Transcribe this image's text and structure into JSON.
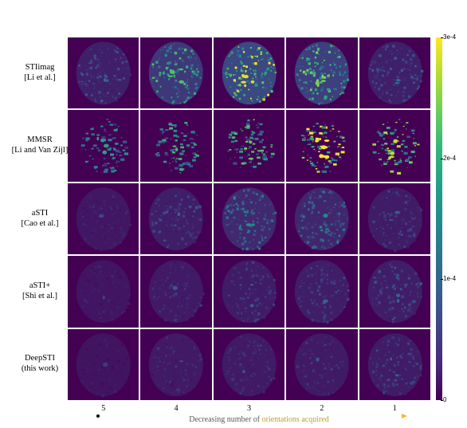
{
  "rows": [
    {
      "name": "STIimag",
      "cite": "[Li et al.]",
      "intensity": [
        0.25,
        0.6,
        0.85,
        0.7,
        0.25
      ]
    },
    {
      "name": "MMSR",
      "cite": "[Li and Van Zijl]",
      "intensity": [
        0.45,
        0.55,
        0.65,
        0.95,
        0.8
      ]
    },
    {
      "name": "aSTI",
      "cite": "[Cao et al.]",
      "intensity": [
        0.12,
        0.22,
        0.38,
        0.35,
        0.2
      ]
    },
    {
      "name": "aSTI+",
      "cite": "[Shi et al.]",
      "intensity": [
        0.1,
        0.16,
        0.2,
        0.22,
        0.22
      ]
    },
    {
      "name": "DeepSTI",
      "cite": "(this work)",
      "intensity": [
        0.08,
        0.14,
        0.16,
        0.16,
        0.2
      ]
    }
  ],
  "columns": [
    "5",
    "4",
    "3",
    "2",
    "1"
  ],
  "colorbar": {
    "ticks": [
      "3e-4",
      "2e-4",
      "1e-4",
      "0"
    ],
    "fractions": [
      1.0,
      0.667,
      0.333,
      0.0
    ],
    "colormap": "viridis"
  },
  "arrow": {
    "caption_part1": "Decreasing number of",
    "caption_part2": "orientations acquired",
    "start_color": "#000000",
    "end_color": "#f5b82e"
  }
}
